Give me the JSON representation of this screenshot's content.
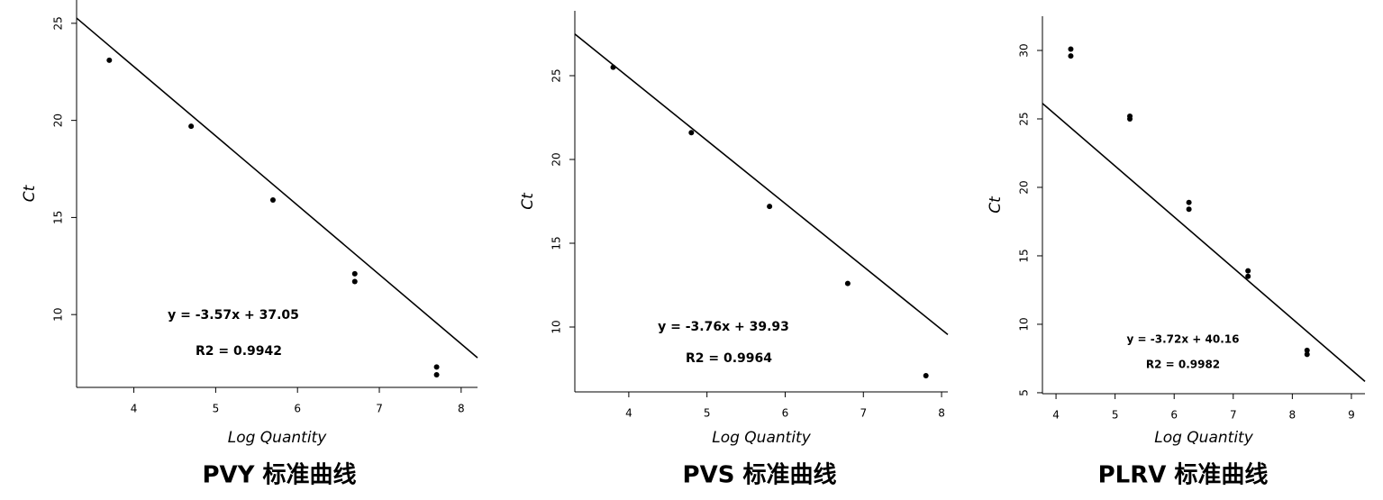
{
  "chart_data": [
    {
      "type": "scatter",
      "title": "PVY 标准曲线",
      "x_label": "Log Quantity",
      "y_label": "Ct",
      "x": [
        3.7,
        4.7,
        5.7,
        6.7,
        6.7,
        7.7,
        7.7
      ],
      "values": [
        23.1,
        19.7,
        15.9,
        12.1,
        11.7,
        7.3,
        6.9
      ],
      "xlim": [
        3.3,
        8.2
      ],
      "xticks": [
        4,
        5,
        6,
        7,
        8
      ],
      "ylim": [
        6.25,
        26.2
      ],
      "yticks": [
        10,
        15,
        20,
        25
      ],
      "trendline": {
        "slope": -3.57,
        "intercept": 37.05
      },
      "annotations": [
        "y = -3.57x + 37.05",
        "R2 = 0.9942"
      ],
      "color": "#000000"
    },
    {
      "type": "scatter",
      "title": "PVS 标准曲线",
      "x_label": "Log Quantity",
      "y_label": "Ct",
      "x": [
        3.8,
        4.8,
        5.8,
        6.8,
        7.8
      ],
      "values": [
        25.5,
        21.6,
        17.2,
        12.6,
        7.1
      ],
      "xlim": [
        3.31,
        8.08
      ],
      "xticks": [
        4,
        5,
        6,
        7,
        8
      ],
      "ylim": [
        6.13,
        28.87
      ],
      "yticks": [
        10,
        15,
        20,
        25
      ],
      "trendline": {
        "slope": -3.76,
        "intercept": 39.93
      },
      "annotations": [
        "y = -3.76x + 39.93",
        "R2 = 0.9964"
      ],
      "color": "#000000"
    },
    {
      "type": "scatter",
      "title": "PLRV 标准曲线",
      "x_label": "Log Quantity",
      "y_label": "Ct",
      "x": [
        4.25,
        4.25,
        5.25,
        5.25,
        6.25,
        6.25,
        7.25,
        7.25,
        8.25,
        8.25
      ],
      "values": [
        30.1,
        29.6,
        25.2,
        25.0,
        18.9,
        18.4,
        13.9,
        13.5,
        8.1,
        7.8
      ],
      "xlim": [
        3.77,
        9.23
      ],
      "xticks": [
        4,
        5,
        6,
        7,
        8,
        9
      ],
      "ylim": [
        4.93,
        32.5
      ],
      "yticks": [
        5,
        10,
        15,
        20,
        25,
        30
      ],
      "trendline": {
        "slope": -3.72,
        "intercept": 40.16
      },
      "annotations": [
        "y = -3.72x + 40.16",
        "R2 = 0.9982"
      ],
      "color": "#000000"
    }
  ]
}
